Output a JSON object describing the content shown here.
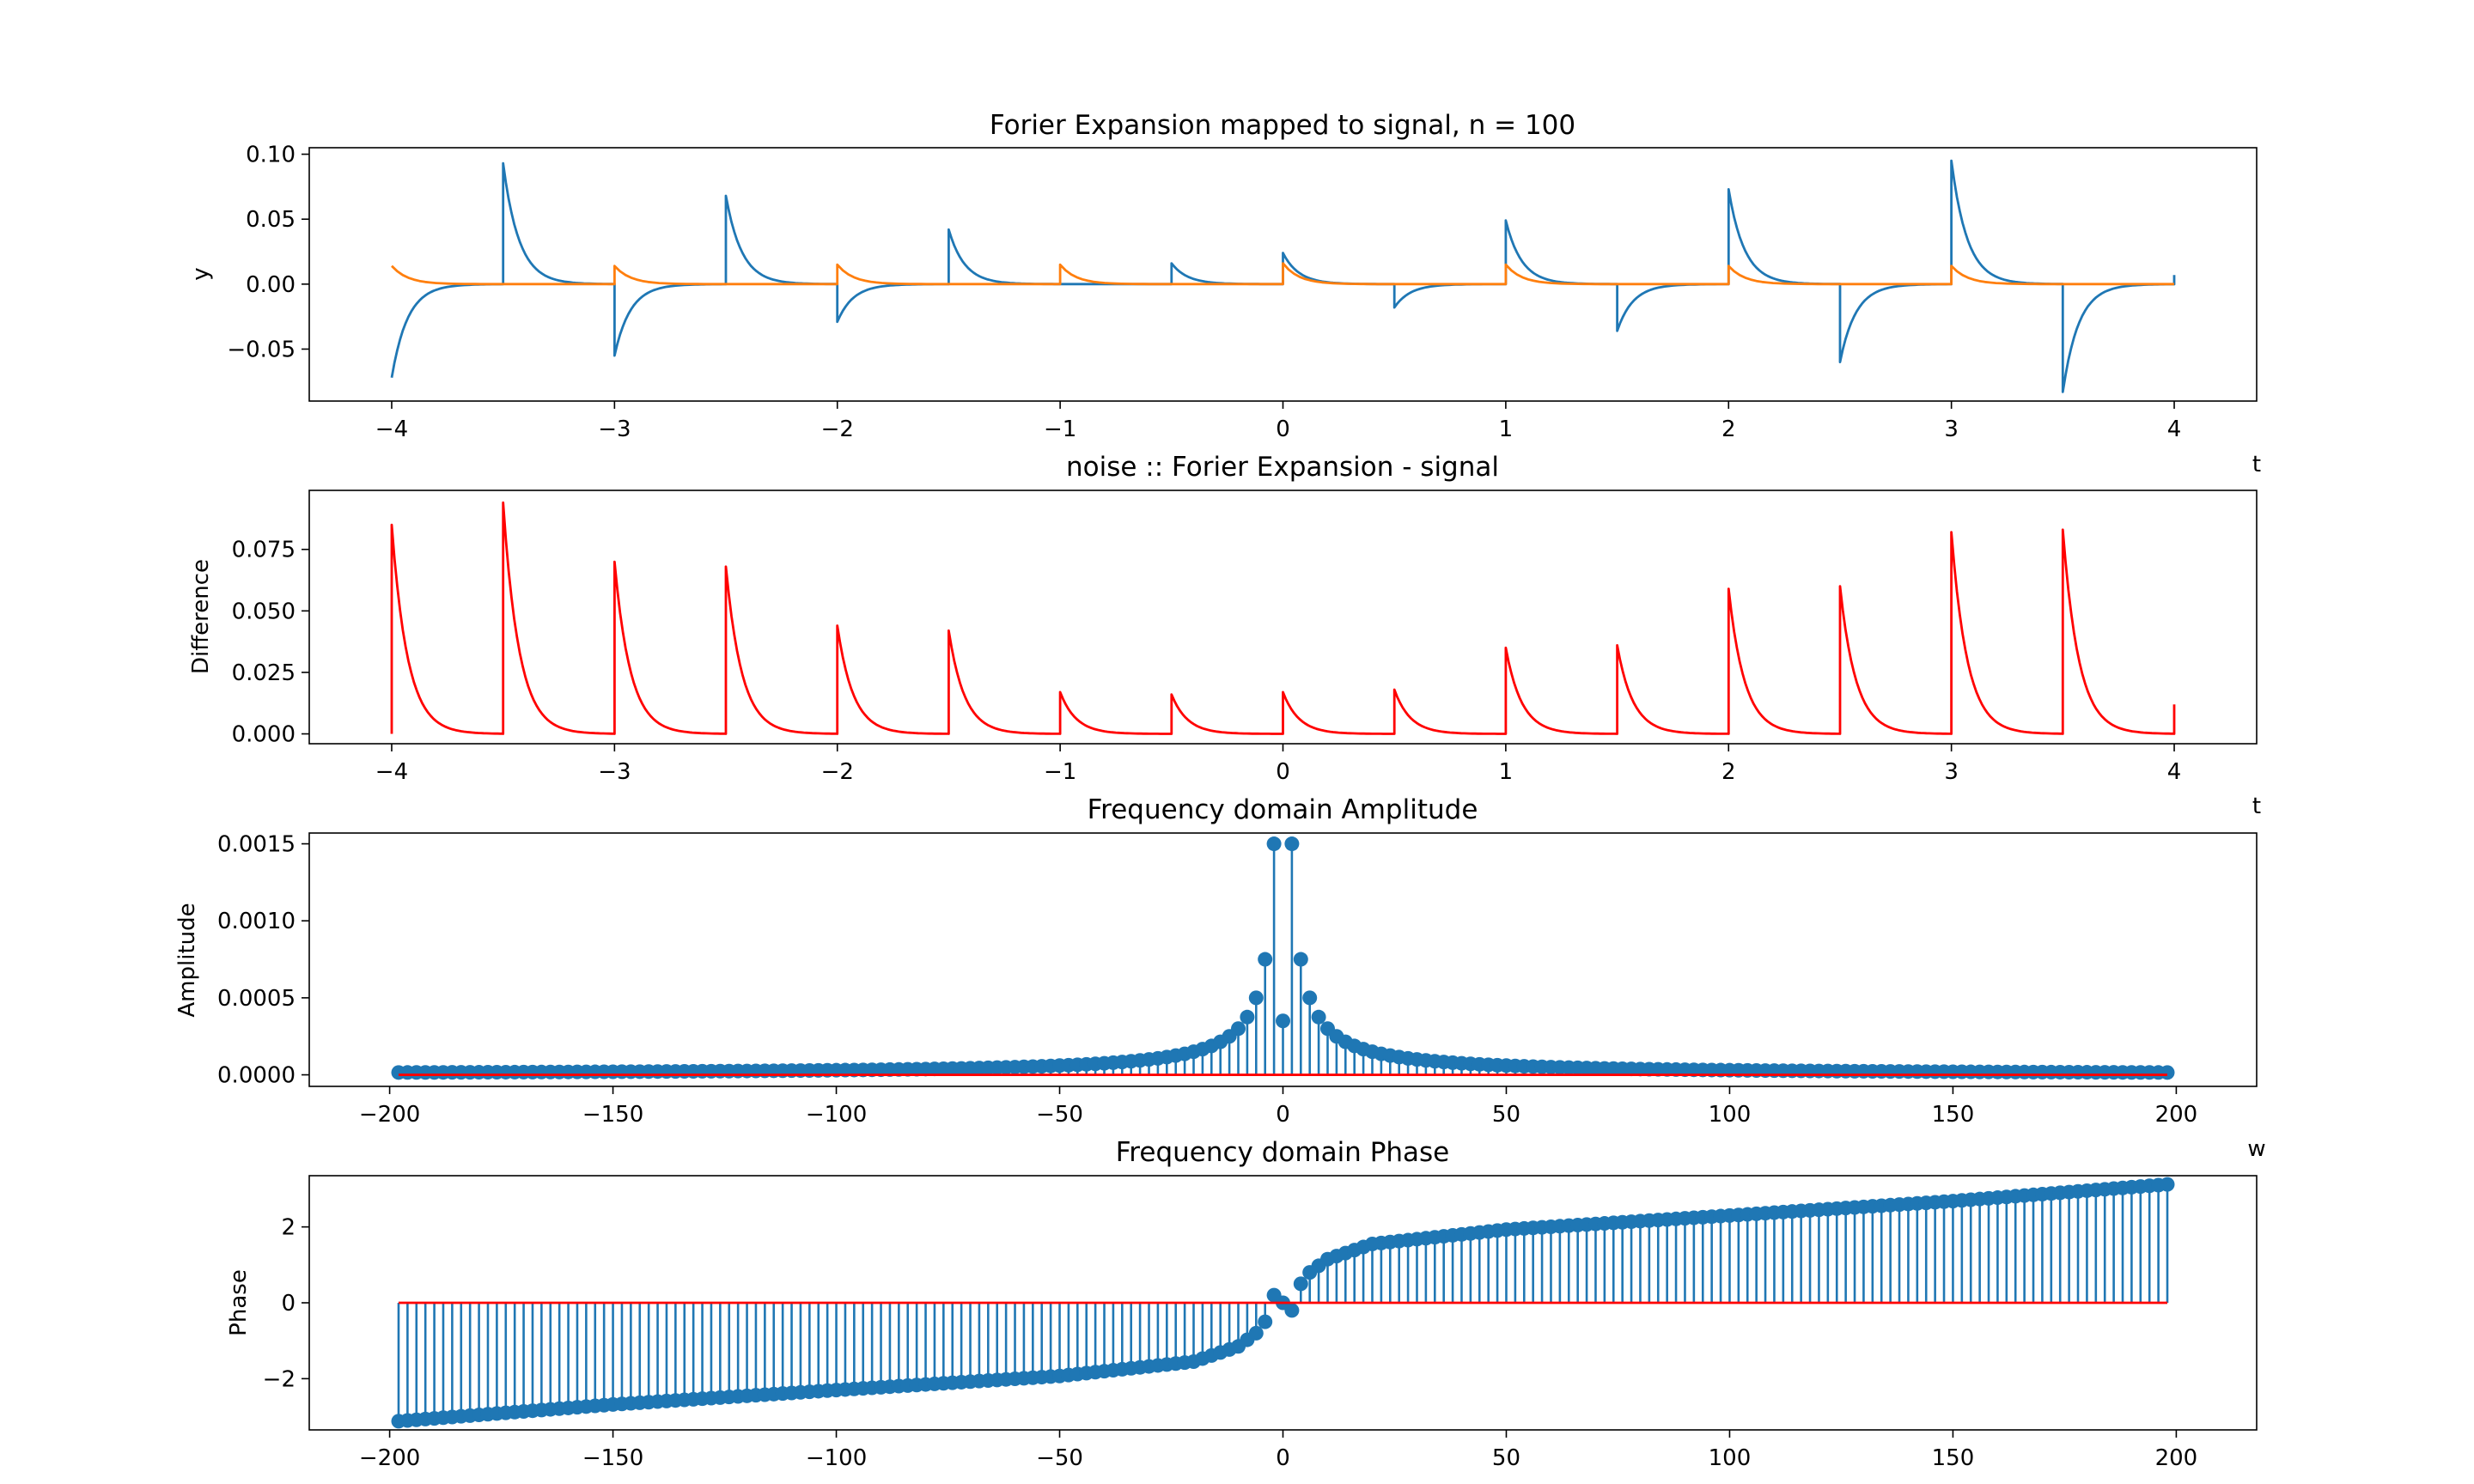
{
  "chart_data": [
    {
      "type": "line",
      "title": "Forier Expansion mapped to signal, n = 100",
      "xlabel": "t",
      "ylabel": "y",
      "xlim": [
        -4.37,
        4.37
      ],
      "ylim": [
        -0.09,
        0.105
      ],
      "xticks": [
        -4,
        -3,
        -2,
        -1,
        0,
        1,
        2,
        3,
        4
      ],
      "xtick_labels": [
        "−4",
        "−3",
        "−2",
        "−1",
        "0",
        "1",
        "2",
        "3",
        "4"
      ],
      "yticks": [
        -0.05,
        0.0,
        0.05,
        0.1
      ],
      "ytick_labels": [
        "−0.05",
        "0.00",
        "0.05",
        "0.10"
      ],
      "grid": false,
      "series": [
        {
          "color": "#1f77b4",
          "x": [
            -4.0,
            -3.5,
            -3.0,
            -2.5,
            -2.0,
            -1.5,
            -1.0,
            -0.5,
            0.0,
            0.5,
            1.0,
            1.5,
            2.0,
            2.5,
            3.0,
            3.5,
            4.0
          ],
          "values": [
            -0.072,
            0.093,
            -0.055,
            0.068,
            -0.029,
            0.042,
            0.0,
            0.016,
            0.024,
            -0.018,
            0.049,
            -0.036,
            0.073,
            -0.06,
            0.095,
            -0.083,
            0.007
          ]
        },
        {
          "color": "#ff7f0e",
          "x": [
            -4.0,
            -3.0,
            -2.0,
            -1.0,
            0.0,
            1.0,
            2.0,
            3.0,
            4.0
          ],
          "values": [
            0.014,
            0.014,
            0.015,
            0.015,
            0.016,
            0.015,
            0.014,
            0.014,
            0.0
          ]
        }
      ]
    },
    {
      "type": "line",
      "title": "noise :: Forier Expansion - signal",
      "xlabel": "t",
      "ylabel": "Difference",
      "xlim": [
        -4.37,
        4.37
      ],
      "ylim": [
        -0.004,
        0.099
      ],
      "xticks": [
        -4,
        -3,
        -2,
        -1,
        0,
        1,
        2,
        3,
        4
      ],
      "xtick_labels": [
        "−4",
        "−3",
        "−2",
        "−1",
        "0",
        "1",
        "2",
        "3",
        "4"
      ],
      "yticks": [
        0.0,
        0.025,
        0.05,
        0.075
      ],
      "ytick_labels": [
        "0.000",
        "0.025",
        "0.050",
        "0.075"
      ],
      "grid": false,
      "series": [
        {
          "color": "#ff0000",
          "x": [
            -4.0,
            -3.5,
            -3.0,
            -2.5,
            -2.0,
            -1.5,
            -1.0,
            -0.5,
            0.0,
            0.5,
            1.0,
            1.5,
            2.0,
            2.5,
            3.0,
            3.5,
            4.0
          ],
          "values": [
            0.085,
            0.094,
            0.07,
            0.068,
            0.044,
            0.042,
            0.017,
            0.016,
            0.017,
            0.018,
            0.035,
            0.036,
            0.059,
            0.06,
            0.082,
            0.083,
            0.012
          ]
        }
      ]
    },
    {
      "type": "stem",
      "title": "Frequency domain Amplitude",
      "xlabel": "w",
      "ylabel": "Amplitude",
      "xlim": [
        -218,
        218
      ],
      "ylim": [
        -7.5e-05,
        0.00157
      ],
      "xticks": [
        -200,
        -150,
        -100,
        -50,
        0,
        50,
        100,
        150,
        200
      ],
      "xtick_labels": [
        "−200",
        "−150",
        "−100",
        "−50",
        "0",
        "50",
        "100",
        "150",
        "200"
      ],
      "yticks": [
        0.0,
        0.0005,
        0.001,
        0.0015
      ],
      "ytick_labels": [
        "0.0000",
        "0.0005",
        "0.0010",
        "0.0015"
      ],
      "grid": false,
      "stem_color": "#1f77b4",
      "baseline_color": "#ff0000",
      "x_range": [
        -198,
        198,
        2
      ],
      "values_rule": "amplitude = 0.0015 * 2 / |w| for w != 0; 0.00035 at w = 0",
      "amp_center": 0.00035,
      "amp_scale": 0.0015
    },
    {
      "type": "stem",
      "title": "Frequency domain Phase",
      "xlabel": "w",
      "ylabel": "Phase",
      "xlim": [
        -218,
        218
      ],
      "ylim": [
        -3.35,
        3.35
      ],
      "xticks": [
        -200,
        -150,
        -100,
        -50,
        0,
        50,
        100,
        150,
        200
      ],
      "xtick_labels": [
        "−200",
        "−150",
        "−100",
        "−50",
        "0",
        "50",
        "100",
        "150",
        "200"
      ],
      "yticks": [
        -2,
        0,
        2
      ],
      "ytick_labels": [
        "−2",
        "0",
        "2"
      ],
      "grid": false,
      "stem_color": "#1f77b4",
      "baseline_color": "#ff0000",
      "x_range": [
        -198,
        198,
        2
      ],
      "phase_points": [
        {
          "x": -198,
          "y": -3.12
        },
        {
          "x": -150,
          "y": -2.68
        },
        {
          "x": -100,
          "y": -2.3
        },
        {
          "x": -50,
          "y": -1.93
        },
        {
          "x": -20,
          "y": -1.55
        },
        {
          "x": -10,
          "y": -1.15
        },
        {
          "x": -6,
          "y": -0.8
        },
        {
          "x": -4,
          "y": -0.5
        },
        {
          "x": -2,
          "y": 0.2
        },
        {
          "x": 0,
          "y": 0.0
        },
        {
          "x": 2,
          "y": -0.2
        },
        {
          "x": 4,
          "y": 0.5
        },
        {
          "x": 6,
          "y": 0.8
        },
        {
          "x": 10,
          "y": 1.15
        },
        {
          "x": 20,
          "y": 1.55
        },
        {
          "x": 50,
          "y": 1.93
        },
        {
          "x": 100,
          "y": 2.3
        },
        {
          "x": 150,
          "y": 2.68
        },
        {
          "x": 198,
          "y": 3.12
        }
      ]
    }
  ]
}
